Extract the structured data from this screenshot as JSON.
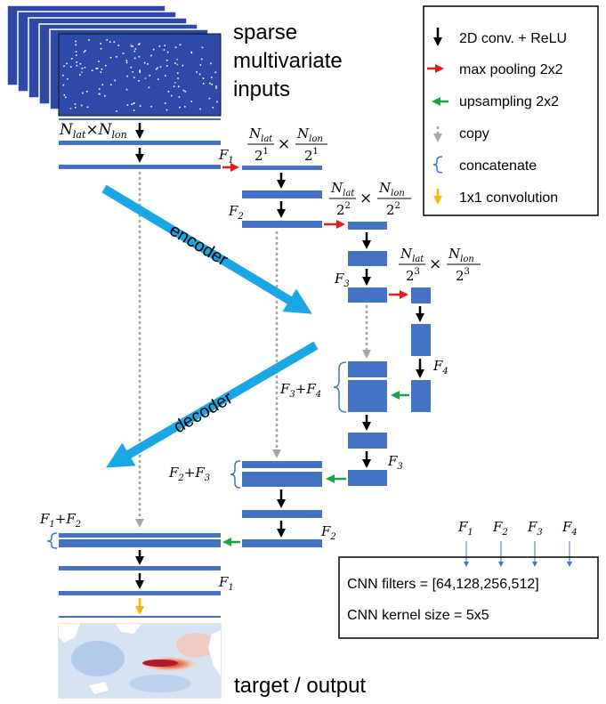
{
  "inputs": {
    "label_line1": "sparse",
    "label_line2": "multivariate",
    "label_line3": "inputs"
  },
  "output": {
    "label": "target / output"
  },
  "dims": {
    "level0": {
      "a": "N",
      "a_sub": "lat",
      "times": "×",
      "b": "N",
      "b_sub": "lon"
    },
    "level1": {
      "num_a": "N",
      "num_a_sub": "lat",
      "den_a": "2",
      "den_a_sup": "1",
      "times": "×",
      "num_b": "N",
      "num_b_sub": "lon",
      "den_b": "2",
      "den_b_sup": "1"
    },
    "level2": {
      "num_a": "N",
      "num_a_sub": "lat",
      "den_a": "2",
      "den_a_sup": "2",
      "times": "×",
      "num_b": "N",
      "num_b_sub": "lon",
      "den_b": "2",
      "den_b_sup": "2"
    },
    "level3": {
      "num_a": "N",
      "num_a_sub": "lat",
      "den_a": "2",
      "den_a_sup": "3",
      "times": "×",
      "num_b": "N",
      "num_b_sub": "lon",
      "den_b": "2",
      "den_b_sup": "3"
    }
  },
  "filters": {
    "f1": {
      "sym": "F",
      "sub": "1"
    },
    "f2": {
      "sym": "F",
      "sub": "2"
    },
    "f3": {
      "sym": "F",
      "sub": "3"
    },
    "f4": {
      "sym": "F",
      "sub": "4"
    }
  },
  "concat_labels": {
    "f3_f4": {
      "a": "F",
      "a_sub": "3",
      "plus": "+",
      "b": "F",
      "b_sub": "4"
    },
    "f2_f3": {
      "a": "F",
      "a_sub": "2",
      "plus": "+",
      "b": "F",
      "b_sub": "3"
    },
    "f1_f2": {
      "a": "F",
      "a_sub": "1",
      "plus": "+",
      "b": "F",
      "b_sub": "2"
    }
  },
  "arrows": {
    "encoder": "encoder",
    "decoder": "decoder"
  },
  "legend": {
    "items": [
      {
        "label": "2D conv. + ReLU",
        "color": "#000000"
      },
      {
        "label": "max pooling 2x2",
        "color": "#e8191a"
      },
      {
        "label": "upsampling 2x2",
        "color": "#1aa54a"
      },
      {
        "label": "copy",
        "color": "#a6a6a6"
      },
      {
        "label": "concatenate",
        "color": "#4472c4"
      },
      {
        "label": "1x1 convolution",
        "color": "#f5b800"
      }
    ]
  },
  "cnn_box": {
    "filters_label": "CNN filters = [64,128,256,512]",
    "kernel_label": "CNN kernel size = 5x5",
    "f_labels": [
      {
        "sym": "F",
        "sub": "1"
      },
      {
        "sym": "F",
        "sub": "2"
      },
      {
        "sym": "F",
        "sub": "3"
      },
      {
        "sym": "F",
        "sub": "4"
      }
    ]
  },
  "colors": {
    "layer": "#4472c4",
    "arrow_big": "#1aa7e6",
    "map_bg": "#2e4aa8"
  }
}
